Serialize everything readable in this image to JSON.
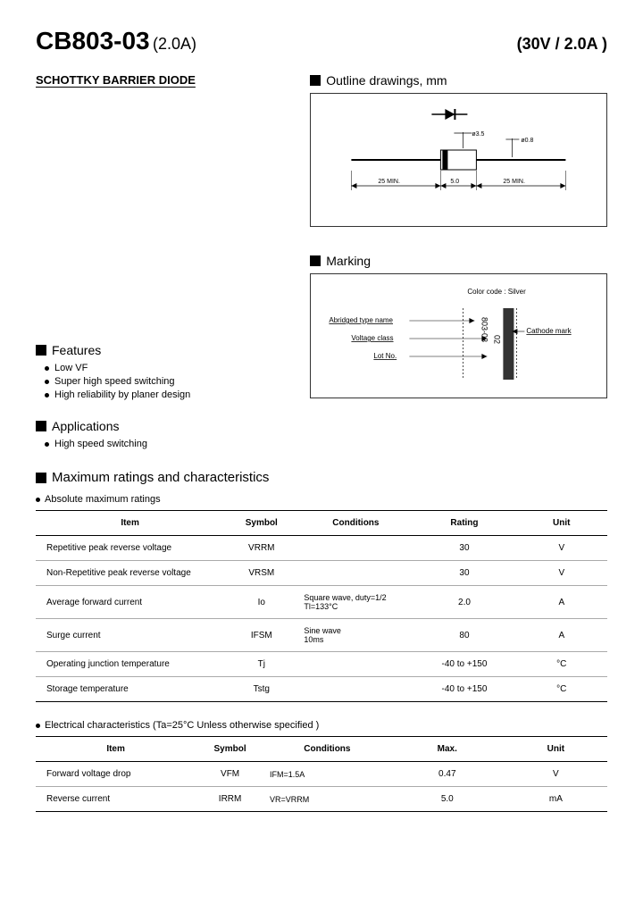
{
  "header": {
    "part_number": "CB803-03",
    "part_current": "(2.0A)",
    "rating": "(30V / 2.0A )"
  },
  "subtitle": "SCHOTTKY BARRIER DIODE",
  "outline": {
    "heading": "Outline  drawings, mm",
    "dim_body_dia": "ø3.5",
    "dim_lead_dia": "ø0.8",
    "dim_lead_len": "25 MIN.",
    "dim_body_len": "5.0",
    "dim_lead_len2": "25 MIN."
  },
  "features": {
    "heading": "Features",
    "items": [
      "Low VF",
      "Super high speed switching",
      "High reliability by planer design"
    ]
  },
  "applications": {
    "heading": "Applications",
    "items": [
      "High speed switching"
    ]
  },
  "marking": {
    "heading": "Marking",
    "color_code": "Color code : Silver",
    "lbl_type": "Abridged type name",
    "lbl_voltage": "Voltage class",
    "lbl_lot": "Lot No.",
    "lbl_cathode": "Cathode mark",
    "body_text1": "803-03",
    "body_text2": "02"
  },
  "ratings": {
    "heading": "Maximum ratings and characteristics",
    "abs_heading": "Absolute maximum ratings",
    "columns": [
      "Item",
      "Symbol",
      "Conditions",
      "Rating",
      "Unit"
    ],
    "rows": [
      {
        "item": "Repetitive peak reverse voltage",
        "symbol": "VRRM",
        "cond": "",
        "rating": "30",
        "unit": "V"
      },
      {
        "item": "Non-Repetitive peak reverse voltage",
        "symbol": "VRSM",
        "cond": "",
        "rating": "30",
        "unit": "V"
      },
      {
        "item": "Average forward current",
        "symbol": "Io",
        "cond": "Square wave, duty=1/2\n   Tl=133°C",
        "rating": "2.0",
        "unit": "A"
      },
      {
        "item": "Surge current",
        "symbol": "IFSM",
        "cond": "Sine  wave\n  10ms",
        "rating": "80",
        "unit": "A"
      },
      {
        "item": "Operating junction temperature",
        "symbol": "Tj",
        "cond": "",
        "rating": "-40  to +150",
        "unit": "°C"
      },
      {
        "item": "Storage temperature",
        "symbol": "Tstg",
        "cond": "",
        "rating": "-40  to +150",
        "unit": "°C"
      }
    ]
  },
  "electrical": {
    "heading": "Electrical  characteristics  (Ta=25°C  Unless  otherwise  specified )",
    "columns": [
      "Item",
      "Symbol",
      "Conditions",
      "Max.",
      "Unit"
    ],
    "rows": [
      {
        "item": "Forward voltage drop",
        "symbol": "VFM",
        "cond": "IFM=1.5A",
        "max": "0.47",
        "unit": "V"
      },
      {
        "item": "Reverse current",
        "symbol": "IRRM",
        "cond": "VR=VRRM",
        "max": "5.0",
        "unit": "mA"
      }
    ]
  },
  "style": {
    "col_widths_ratings": [
      "33%",
      "13%",
      "20%",
      "18%",
      "16%"
    ],
    "col_widths_elec": [
      "28%",
      "12%",
      "22%",
      "20%",
      "18%"
    ]
  }
}
